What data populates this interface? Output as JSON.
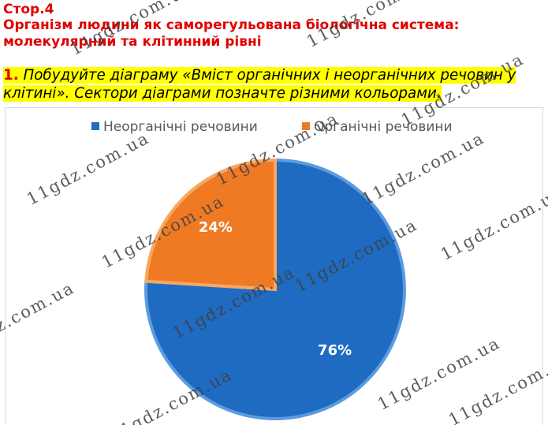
{
  "header": {
    "page_ref": "Стор.4",
    "topic": "Організм людини як саморегульована біологічна система: молекулярний та клітинний рівні"
  },
  "task": {
    "number": "1.",
    "text": "Побудуйте діаграму «Вміст органічних і неорганічних речовин у клітині». Сектори діаграми позначте різними кольорами."
  },
  "watermark": "11gdz.com.ua",
  "colors": {
    "inorganic": "#1f6bc2",
    "organic": "#f07a24",
    "accent": "#e00000",
    "highlight": "#ffff00"
  },
  "chart_data": {
    "type": "pie",
    "title": "",
    "legend_position": "top",
    "labels": [
      "Неорганічні речовини",
      "Органічні речовини"
    ],
    "values": [
      76,
      24
    ],
    "data_labels": [
      "76%",
      "24%"
    ],
    "colors": [
      "#1f6bc2",
      "#f07a24"
    ]
  }
}
